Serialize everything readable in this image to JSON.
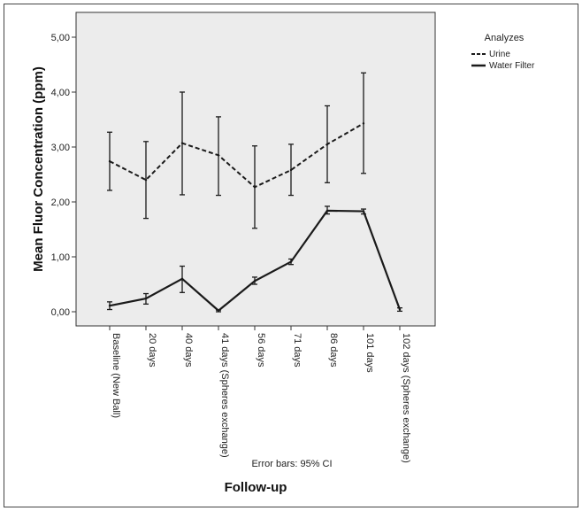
{
  "chart_data": {
    "type": "line",
    "ylabel": "Mean Fluor Concentration (ppm)",
    "xlabel": "Follow-up",
    "note": "Error bars: 95% CI",
    "ylim": [
      -0.3,
      5.25
    ],
    "yticks": [
      "0,00",
      "1,00",
      "2,00",
      "3,00",
      "4,00",
      "5,00"
    ],
    "ytick_values": [
      0,
      1,
      2,
      3,
      4,
      5
    ],
    "categories": [
      "Baseline (New Ball)",
      "20 days",
      "40 days",
      "41 days (Spheres exchange)",
      "56 days",
      "71 days",
      "86 days",
      "101 days",
      "102 days (Spheres exchange)"
    ],
    "legend": {
      "title": "Analyzes",
      "placement": "outside-right-top"
    },
    "series": [
      {
        "name": "Urine",
        "style": "dashed",
        "points": [
          {
            "x": 0,
            "y": 2.74,
            "low": 2.21,
            "high": 3.27
          },
          {
            "x": 1,
            "y": 2.4,
            "low": 1.7,
            "high": 3.1
          },
          {
            "x": 2,
            "y": 3.07,
            "low": 2.13,
            "high": 4.0
          },
          {
            "x": 3,
            "y": 2.85,
            "low": 2.12,
            "high": 3.55
          },
          {
            "x": 4,
            "y": 2.27,
            "low": 1.52,
            "high": 3.02
          },
          {
            "x": 5,
            "y": 2.58,
            "low": 2.12,
            "high": 3.05
          },
          {
            "x": 6,
            "y": 3.05,
            "low": 2.35,
            "high": 3.75
          },
          {
            "x": 7,
            "y": 3.43,
            "low": 2.52,
            "high": 4.35
          }
        ]
      },
      {
        "name": "Water Filter",
        "style": "solid",
        "points": [
          {
            "x": 0,
            "y": 0.11,
            "low": 0.04,
            "high": 0.18
          },
          {
            "x": 1,
            "y": 0.24,
            "low": 0.14,
            "high": 0.33
          },
          {
            "x": 2,
            "y": 0.6,
            "low": 0.35,
            "high": 0.83
          },
          {
            "x": 3,
            "y": 0.02,
            "low": 0.0,
            "high": 0.03
          },
          {
            "x": 4,
            "y": 0.56,
            "low": 0.5,
            "high": 0.63
          },
          {
            "x": 5,
            "y": 0.91,
            "low": 0.86,
            "high": 0.96
          },
          {
            "x": 6,
            "y": 1.84,
            "low": 1.78,
            "high": 1.92
          },
          {
            "x": 7,
            "y": 1.83,
            "low": 1.78,
            "high": 1.87
          },
          {
            "x": 8,
            "y": 0.04,
            "low": 0.01,
            "high": 0.07
          }
        ]
      }
    ],
    "colors": {
      "plot_background": "#ececec",
      "line": "#1a1a1a"
    }
  }
}
